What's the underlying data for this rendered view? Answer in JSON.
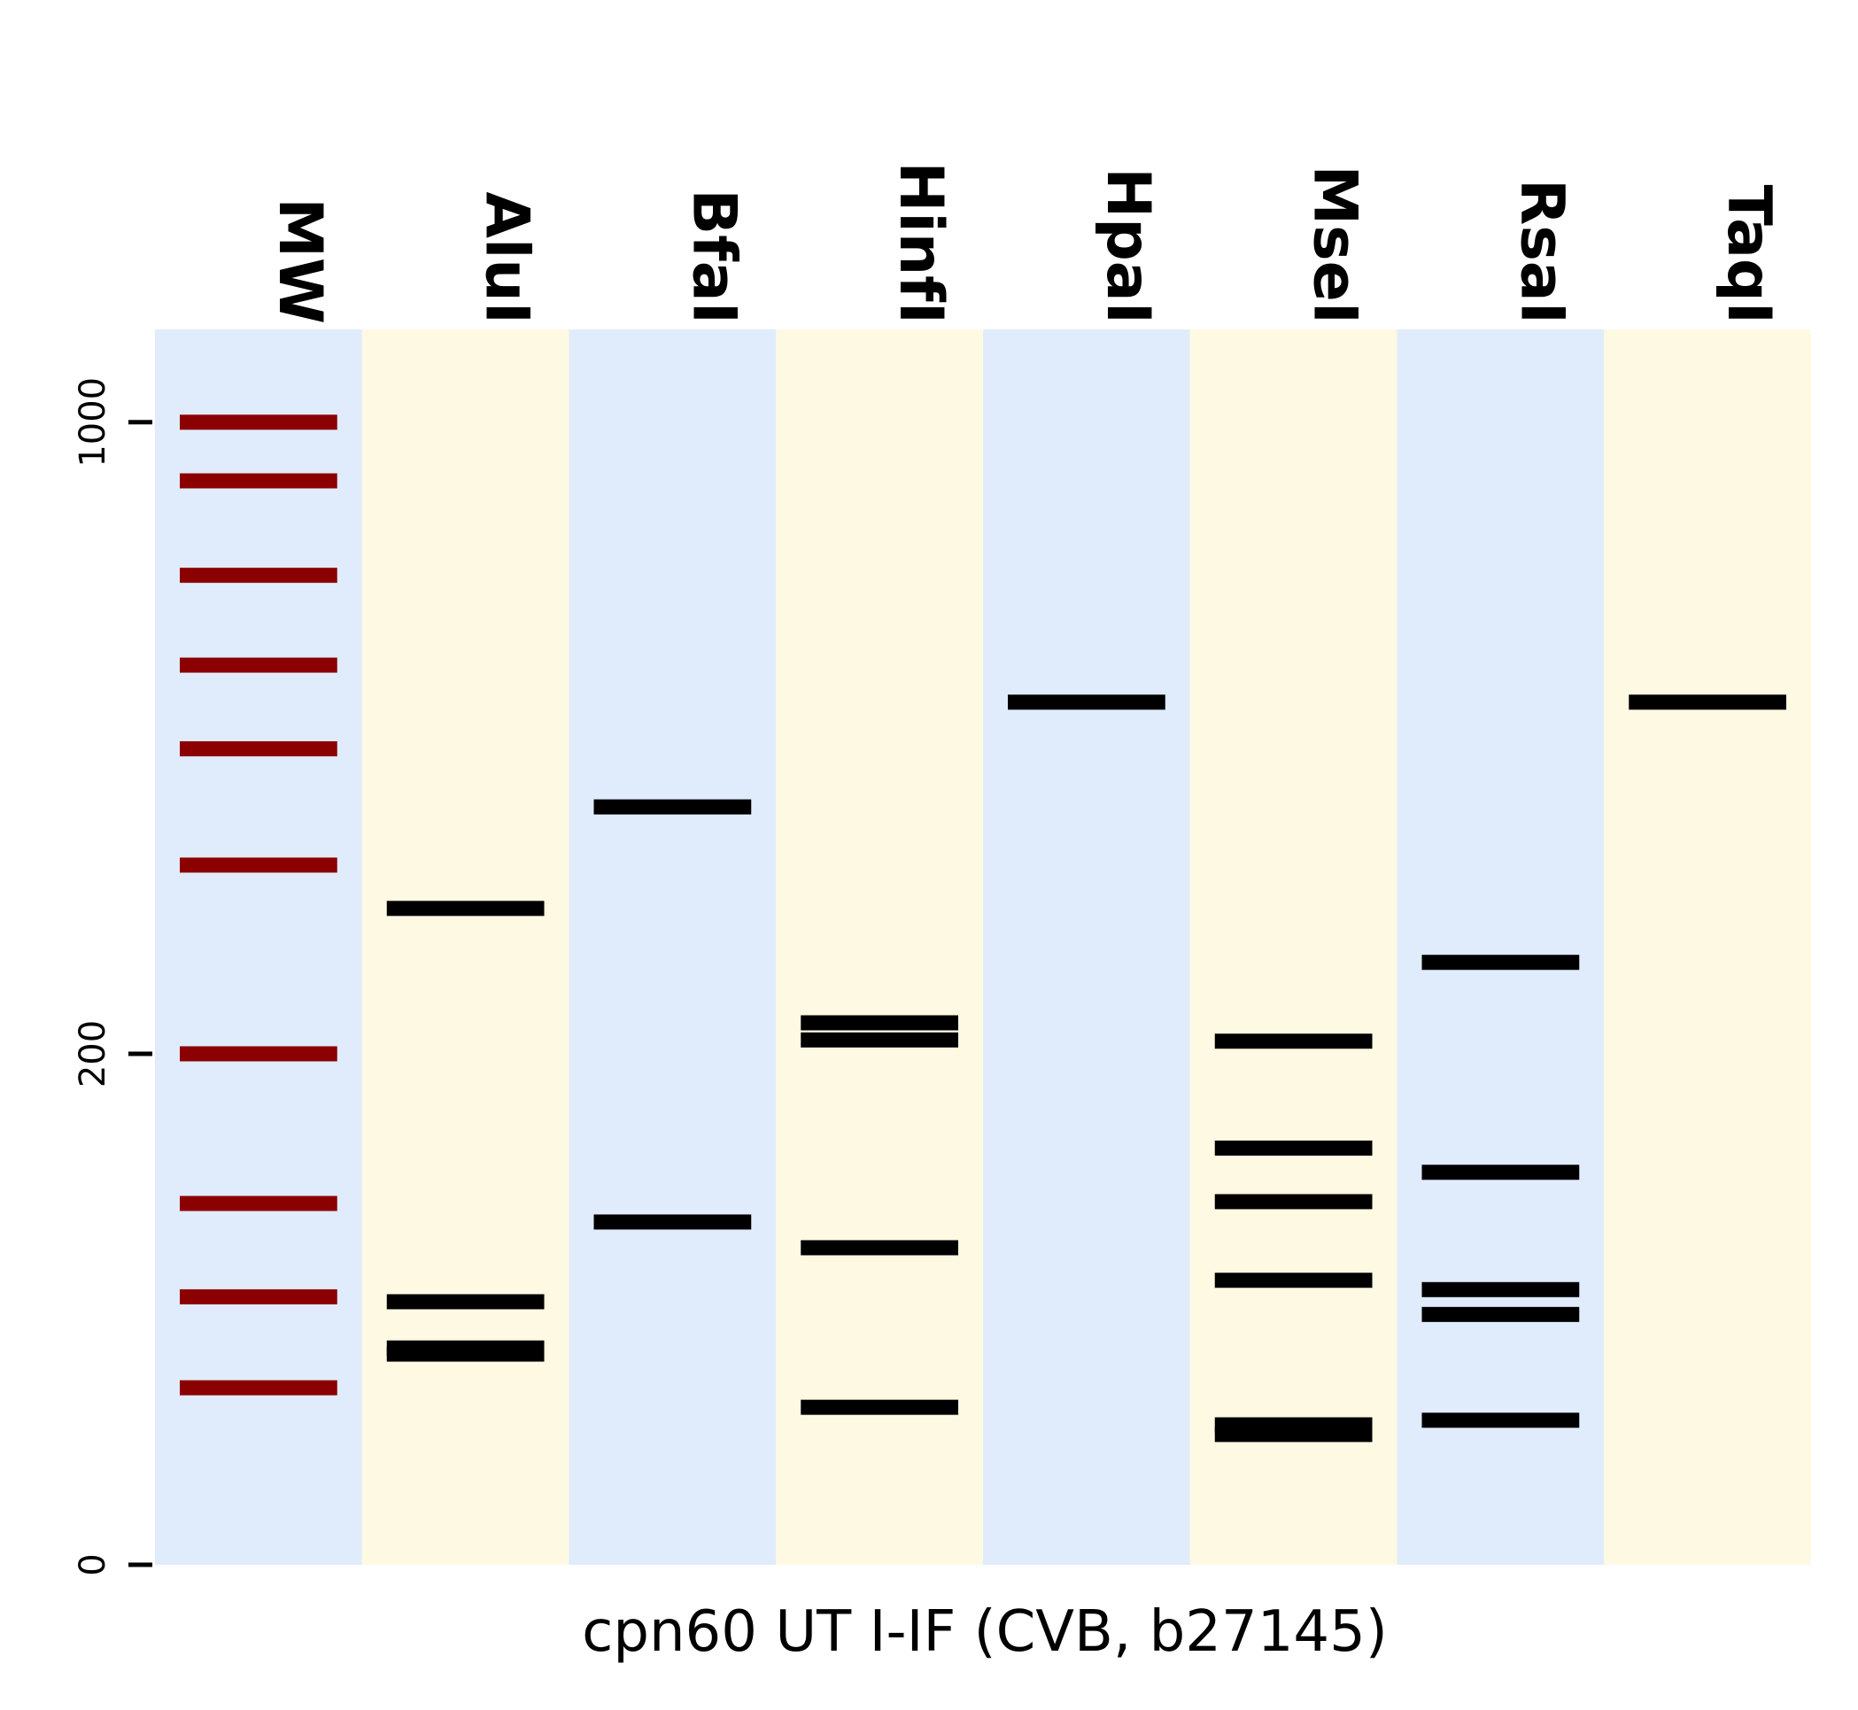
{
  "chart_data": {
    "type": "gel",
    "title": "cpn60 UT I-IF (CVB, b27145)",
    "xlabel": "",
    "ylabel": "",
    "y_ticks": [
      0,
      200,
      1000
    ],
    "lane_colors": [
      "#e0ecfb",
      "#fdf9e3"
    ],
    "marker_color": "#8b0000",
    "band_color": "#000000",
    "lanes": [
      {
        "name": "MW",
        "marker": true,
        "bands": [
          1000,
          900,
          750,
          620,
          510,
          375,
          200,
          100,
          55,
          24
        ]
      },
      {
        "name": "AluI",
        "marker": false,
        "bands": [
          330,
          53,
          36,
          34
        ]
      },
      {
        "name": "BfaI",
        "marker": false,
        "bands": [
          440,
          90
        ]
      },
      {
        "name": "HinfI",
        "marker": false,
        "bands": [
          225,
          211,
          77,
          19
        ]
      },
      {
        "name": "HpaI",
        "marker": false,
        "bands": [
          570
        ]
      },
      {
        "name": "MseI",
        "marker": false,
        "bands": [
          210,
          133,
          101,
          62,
          15,
          13
        ]
      },
      {
        "name": "RsaI",
        "marker": false,
        "bands": [
          278,
          118,
          58,
          48,
          16
        ]
      },
      {
        "name": "TaqI",
        "marker": false,
        "bands": [
          570
        ]
      }
    ]
  }
}
